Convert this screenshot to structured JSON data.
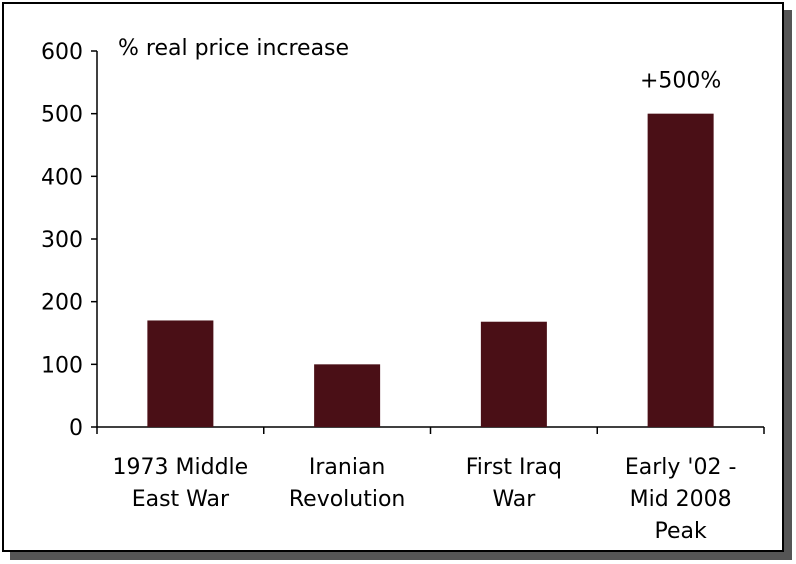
{
  "chart_data": {
    "type": "bar",
    "categories": [
      [
        "1973 Middle",
        "East War"
      ],
      [
        "Iranian",
        "Revolution"
      ],
      [
        "First Iraq",
        "War"
      ],
      [
        "Early '02 -",
        "Mid 2008",
        "Peak"
      ]
    ],
    "values": [
      170,
      100,
      168,
      500
    ],
    "bar_color": "#4a0f16",
    "ylabel": "% real price increase",
    "ylim": [
      0,
      600
    ],
    "yticks": [
      0,
      100,
      200,
      300,
      400,
      500,
      600
    ],
    "annotation": "+500%",
    "grid": false
  }
}
